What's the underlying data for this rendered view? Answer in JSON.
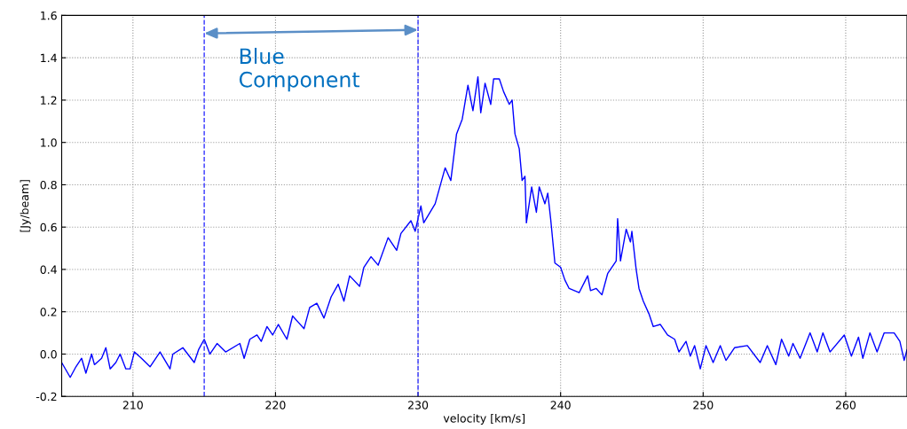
{
  "chart_data": {
    "type": "line",
    "xlabel": "velocity [km/s]",
    "ylabel": "[Jy/beam]",
    "x": [
      205.0,
      205.6,
      206.0,
      206.4,
      206.7,
      207.1,
      207.3,
      207.8,
      208.1,
      208.4,
      208.8,
      209.1,
      209.5,
      209.8,
      210.1,
      210.6,
      211.2,
      211.9,
      212.6,
      212.8,
      213.5,
      214.3,
      214.6,
      215.0,
      215.4,
      215.9,
      216.5,
      217.5,
      217.8,
      218.2,
      218.7,
      219.0,
      219.4,
      219.8,
      220.2,
      220.8,
      221.2,
      221.6,
      222.0,
      222.4,
      222.9,
      223.4,
      223.9,
      224.4,
      224.8,
      225.2,
      225.9,
      226.2,
      226.7,
      227.2,
      227.9,
      228.5,
      228.8,
      229.5,
      229.8,
      230.2,
      230.4,
      231.2,
      231.9,
      232.3,
      232.7,
      233.1,
      233.5,
      233.85,
      234.2,
      234.4,
      234.7,
      235.1,
      235.3,
      235.7,
      236.0,
      236.4,
      236.6,
      236.8,
      237.1,
      237.3,
      237.5,
      237.6,
      237.97,
      238.3,
      238.5,
      238.9,
      239.1,
      239.3,
      239.6,
      240.0,
      240.3,
      240.6,
      241.3,
      241.9,
      242.1,
      242.5,
      242.9,
      243.3,
      243.9,
      244.0,
      244.2,
      244.6,
      244.9,
      245.0,
      245.3,
      245.5,
      245.8,
      246.2,
      246.5,
      247.0,
      247.5,
      248.0,
      248.3,
      248.8,
      249.1,
      249.4,
      249.8,
      250.2,
      250.7,
      251.2,
      251.6,
      252.2,
      253.1,
      254.0,
      254.5,
      255.1,
      255.5,
      256.0,
      256.3,
      256.8,
      257.5,
      258.0,
      258.4,
      258.9,
      259.9,
      260.4,
      260.9,
      261.2,
      261.7,
      262.2,
      262.7,
      263.4,
      263.8,
      264.1,
      264.3
    ],
    "series": [
      {
        "color": "#0000ff",
        "values": [
          -0.04,
          -0.11,
          -0.06,
          -0.02,
          -0.09,
          0.0,
          -0.05,
          -0.02,
          0.03,
          -0.07,
          -0.04,
          0.0,
          -0.07,
          -0.07,
          0.01,
          -0.02,
          -0.06,
          0.01,
          -0.07,
          0.0,
          0.03,
          -0.04,
          0.02,
          0.07,
          0.0,
          0.05,
          0.01,
          0.05,
          -0.02,
          0.07,
          0.09,
          0.06,
          0.13,
          0.09,
          0.14,
          0.07,
          0.18,
          0.15,
          0.12,
          0.22,
          0.24,
          0.17,
          0.27,
          0.33,
          0.25,
          0.37,
          0.32,
          0.41,
          0.46,
          0.42,
          0.55,
          0.49,
          0.57,
          0.63,
          0.58,
          0.7,
          0.62,
          0.71,
          0.88,
          0.82,
          1.04,
          1.11,
          1.27,
          1.15,
          1.31,
          1.14,
          1.28,
          1.18,
          1.3,
          1.3,
          1.24,
          1.18,
          1.2,
          1.04,
          0.97,
          0.82,
          0.84,
          0.62,
          0.79,
          0.67,
          0.79,
          0.71,
          0.76,
          0.64,
          0.43,
          0.41,
          0.35,
          0.31,
          0.29,
          0.37,
          0.3,
          0.31,
          0.28,
          0.38,
          0.44,
          0.64,
          0.44,
          0.59,
          0.53,
          0.58,
          0.4,
          0.31,
          0.25,
          0.19,
          0.13,
          0.14,
          0.09,
          0.07,
          0.01,
          0.06,
          -0.01,
          0.04,
          -0.07,
          0.04,
          -0.04,
          0.04,
          -0.03,
          0.03,
          0.04,
          -0.04,
          0.04,
          -0.05,
          0.07,
          -0.01,
          0.05,
          -0.02,
          0.1,
          0.01,
          0.1,
          0.01,
          0.09,
          -0.01,
          0.08,
          -0.02,
          0.1,
          0.01,
          0.1,
          0.1,
          0.06,
          -0.03,
          0.02
        ]
      }
    ],
    "xlim": [
      205,
      264.3
    ],
    "xticks": [
      210,
      220,
      230,
      240,
      250,
      260
    ],
    "ylim": [
      -0.2,
      1.6
    ],
    "yticks": [
      -0.2,
      {
        "value": 0,
        "label": "0.0"
      },
      0.2,
      0.4,
      0.6,
      0.8,
      {
        "value": 1,
        "label": "1.0"
      },
      1.2,
      1.4,
      1.6
    ],
    "grid": true,
    "line_style": "solid",
    "marker": "none",
    "ref_lines": [
      {
        "axis": "x",
        "value": 215,
        "color": "#3333ff",
        "line_style": "dashed"
      },
      {
        "axis": "x",
        "value": 230,
        "color": "#3333ff",
        "line_style": "dashed"
      }
    ],
    "annotations": [
      "Blue\nComponent"
    ]
  }
}
